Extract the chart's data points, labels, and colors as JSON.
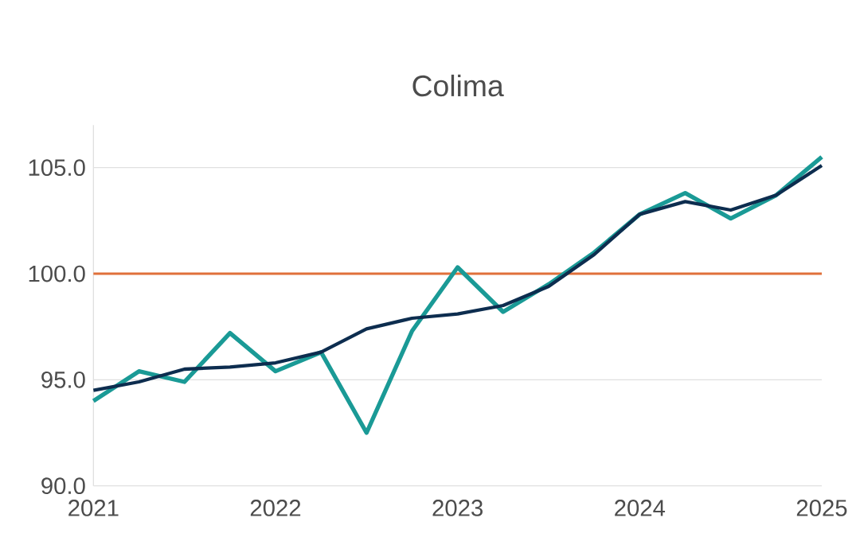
{
  "chart_data": {
    "type": "line",
    "title": "Colima",
    "x": [
      2021,
      2021.25,
      2021.5,
      2021.75,
      2022,
      2022.25,
      2022.5,
      2022.75,
      2023,
      2023.25,
      2023.5,
      2023.75,
      2024,
      2024.25,
      2024.5,
      2024.75,
      2025
    ],
    "series": [
      {
        "color": "#1a9a96",
        "values": [
          94.0,
          95.4,
          94.9,
          97.2,
          95.4,
          96.3,
          92.5,
          97.3,
          100.3,
          98.2,
          99.5,
          101.0,
          102.8,
          103.8,
          102.6,
          103.7,
          105.5
        ]
      },
      {
        "color": "#0d2d4f",
        "values": [
          94.5,
          94.9,
          95.5,
          95.6,
          95.8,
          96.3,
          97.4,
          97.9,
          98.1,
          98.5,
          99.4,
          100.9,
          102.8,
          103.4,
          103.0,
          103.7,
          105.1
        ]
      }
    ],
    "xlim": [
      2021,
      2025
    ],
    "xticks": [
      2021,
      2022,
      2023,
      2024,
      2025
    ],
    "ylim": [
      90,
      107
    ],
    "yticks": [
      {
        "value": 90,
        "label": "90.0"
      },
      {
        "value": 95,
        "label": "95.0"
      },
      {
        "value": 100,
        "label": "100.0"
      },
      {
        "value": 105,
        "label": "105.0"
      }
    ],
    "ref_lines": [
      {
        "axis": "y",
        "value": 100,
        "color": "#e0703a"
      }
    ],
    "grid": "y",
    "legend": false,
    "marker": "none",
    "line_style": "solid"
  }
}
